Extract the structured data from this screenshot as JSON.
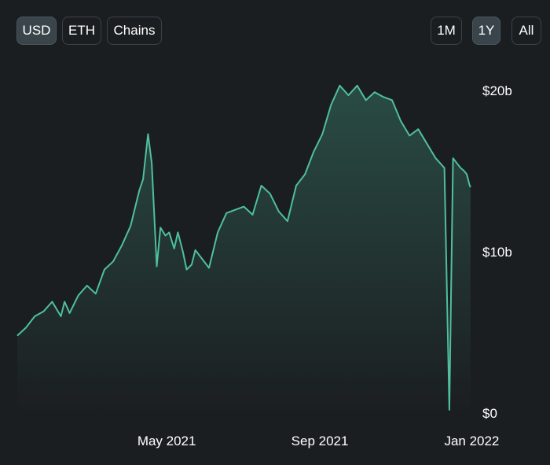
{
  "toggles": {
    "currency": [
      {
        "label": "USD",
        "active": true
      },
      {
        "label": "ETH",
        "active": false
      },
      {
        "label": "Chains",
        "active": false
      }
    ],
    "range": [
      {
        "label": "1M",
        "active": false
      },
      {
        "label": "1Y",
        "active": true
      },
      {
        "label": "All",
        "active": false
      }
    ]
  },
  "colors": {
    "line": "#4fbfa0",
    "background": "#1b1e21",
    "active_button": "#39454b"
  },
  "chart_data": {
    "type": "area",
    "title": "",
    "xlabel": "",
    "ylabel": "",
    "ylim": [
      0,
      20
    ],
    "y_unit": "billion USD",
    "y_ticks": [
      {
        "value": 0,
        "label": "$0"
      },
      {
        "value": 10,
        "label": "$10b"
      },
      {
        "value": 20,
        "label": "$20b"
      }
    ],
    "x_ticks": [
      {
        "value": "2021-05-01",
        "label": "May 2021"
      },
      {
        "value": "2021-09-01",
        "label": "Sep 2021"
      },
      {
        "value": "2022-01-01",
        "label": "Jan 2022"
      }
    ],
    "xlim": [
      "2021-01-01",
      "2022-01-02"
    ],
    "grid": false,
    "legend": "none",
    "series": [
      {
        "x": [
          "2021-01-01",
          "2021-01-08",
          "2021-01-15",
          "2021-01-22",
          "2021-01-29",
          "2021-02-05",
          "2021-02-08",
          "2021-02-12",
          "2021-02-19",
          "2021-02-26",
          "2021-03-05",
          "2021-03-12",
          "2021-03-19",
          "2021-03-26",
          "2021-04-02",
          "2021-04-09",
          "2021-04-12",
          "2021-04-16",
          "2021-04-19",
          "2021-04-23",
          "2021-04-26",
          "2021-04-30",
          "2021-05-03",
          "2021-05-07",
          "2021-05-10",
          "2021-05-14",
          "2021-05-17",
          "2021-05-21",
          "2021-05-24",
          "2021-05-28",
          "2021-06-04",
          "2021-06-11",
          "2021-06-18",
          "2021-06-25",
          "2021-07-02",
          "2021-07-09",
          "2021-07-16",
          "2021-07-23",
          "2021-07-30",
          "2021-08-06",
          "2021-08-13",
          "2021-08-20",
          "2021-08-27",
          "2021-09-03",
          "2021-09-10",
          "2021-09-17",
          "2021-09-24",
          "2021-10-01",
          "2021-10-08",
          "2021-10-15",
          "2021-10-22",
          "2021-10-29",
          "2021-11-05",
          "2021-11-12",
          "2021-11-19",
          "2021-11-26",
          "2021-12-03",
          "2021-12-10",
          "2021-12-14",
          "2021-12-17",
          "2021-12-20",
          "2021-12-23",
          "2021-12-26",
          "2021-12-28",
          "2021-12-29",
          "2021-12-30",
          "2021-12-31"
        ],
        "values": [
          4.8,
          5.3,
          6.0,
          6.3,
          6.9,
          6.0,
          6.9,
          6.2,
          7.3,
          7.9,
          7.4,
          8.9,
          9.4,
          10.4,
          11.6,
          13.8,
          14.5,
          17.3,
          15.5,
          9.1,
          11.5,
          11.0,
          11.2,
          10.2,
          11.2,
          10.0,
          8.9,
          9.2,
          10.1,
          9.7,
          9.0,
          11.2,
          12.4,
          12.6,
          12.8,
          12.3,
          14.1,
          13.6,
          12.5,
          11.9,
          14.1,
          14.8,
          16.2,
          17.3,
          19.1,
          20.3,
          19.7,
          20.3,
          19.4,
          19.9,
          19.6,
          19.4,
          18.1,
          17.2,
          17.6,
          16.7,
          15.8,
          15.2,
          0.2,
          15.8,
          15.5,
          15.2,
          15.0,
          14.8,
          14.5,
          14.2,
          14.0
        ],
        "note_removed": true
      }
    ]
  }
}
